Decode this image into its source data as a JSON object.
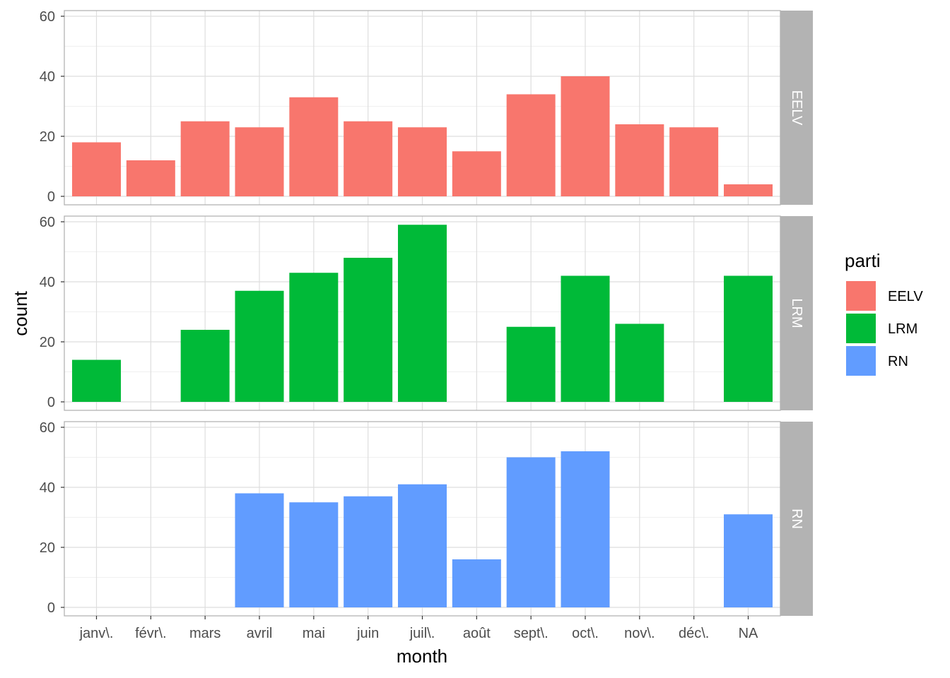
{
  "chart_data": {
    "type": "bar",
    "xlabel": "month",
    "ylabel": "count",
    "categories": [
      "janv\\.",
      "févr\\.",
      "mars",
      "avril",
      "mai",
      "juin",
      "juil\\.",
      "août",
      "sept\\.",
      "oct\\.",
      "nov\\.",
      "déc\\.",
      "NA"
    ],
    "ylim": [
      0,
      60
    ],
    "yticks": [
      0,
      20,
      40,
      60
    ],
    "grid": true,
    "legend": {
      "title": "parti",
      "position": "right",
      "entries": [
        "EELV",
        "LRM",
        "RN"
      ]
    },
    "facets": [
      {
        "name": "EELV",
        "color": "#F8766D",
        "values": [
          18,
          12,
          25,
          23,
          33,
          25,
          23,
          15,
          34,
          40,
          24,
          23,
          4
        ]
      },
      {
        "name": "LRM",
        "color": "#00BA38",
        "values": [
          14,
          0,
          24,
          37,
          43,
          48,
          59,
          0,
          25,
          42,
          26,
          0,
          42
        ]
      },
      {
        "name": "RN",
        "color": "#619CFF",
        "values": [
          0,
          0,
          0,
          38,
          35,
          37,
          41,
          16,
          50,
          52,
          0,
          0,
          31
        ]
      }
    ]
  },
  "colors": {
    "panel_border": "#b3b3b3",
    "grid_major": "#dedede",
    "grid_minor": "#f0f0f0",
    "strip_background": "#b3b3b3"
  }
}
